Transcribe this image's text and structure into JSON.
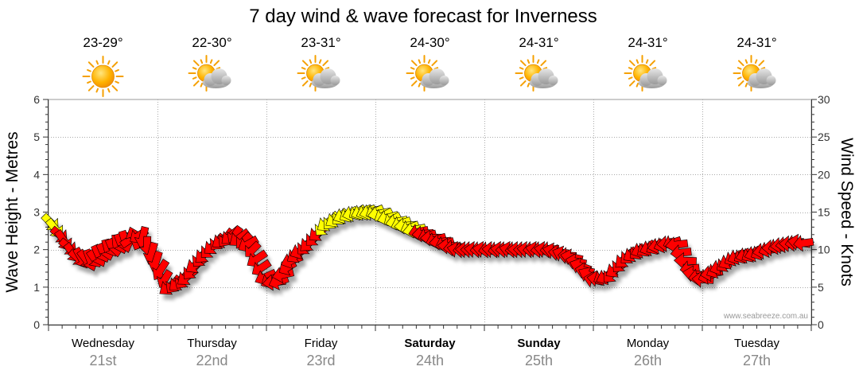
{
  "chart_data": {
    "type": "line",
    "title": "7 day wind & wave forecast for Inverness",
    "y_left_label": "Wave Height - Metres",
    "y_right_label": "Wind Speed - Knots",
    "y_left_range": [
      0,
      6
    ],
    "y_left_ticks": [
      "0",
      "1",
      "2",
      "3",
      "4",
      "5",
      "6"
    ],
    "y_right_range": [
      0,
      30
    ],
    "y_right_ticks": [
      "0",
      "5",
      "10",
      "15",
      "20",
      "25",
      "30"
    ],
    "grid": true,
    "watermark": "www.seabreeze.com.au",
    "days": [
      {
        "day": "Wednesday",
        "date": "21st",
        "temp": "23-29°",
        "icon": "sun-icon",
        "bold": false
      },
      {
        "day": "Thursday",
        "date": "22nd",
        "temp": "22-30°",
        "icon": "sun-cloud-icon",
        "bold": false
      },
      {
        "day": "Friday",
        "date": "23rd",
        "temp": "23-31°",
        "icon": "sun-cloud-icon",
        "bold": false
      },
      {
        "day": "Saturday",
        "date": "24th",
        "temp": "24-30°",
        "icon": "sun-cloud-icon",
        "bold": true
      },
      {
        "day": "Sunday",
        "date": "25th",
        "temp": "24-31°",
        "icon": "sun-cloud-icon",
        "bold": true
      },
      {
        "day": "Monday",
        "date": "26th",
        "temp": "24-31°",
        "icon": "sun-cloud-icon",
        "bold": false
      },
      {
        "day": "Tuesday",
        "date": "27th",
        "temp": "24-31°",
        "icon": "sun-cloud-icon",
        "bold": false
      }
    ],
    "colors": {
      "strong_wind": "#ff0000",
      "moderate_wind": "#ffff00",
      "arrow_stroke": "#000000"
    },
    "wind_series": {
      "name": "Wind Speed",
      "x_days": [
        0.0,
        0.1,
        0.25,
        0.4,
        0.55,
        0.7,
        0.85,
        1.0,
        1.1,
        1.25,
        1.4,
        1.55,
        1.7,
        1.85,
        2.0,
        2.1,
        2.25,
        2.4,
        2.55,
        2.7,
        2.85,
        3.0,
        3.15,
        3.3,
        3.45,
        3.6,
        3.75,
        3.9,
        4.05,
        4.2,
        4.4,
        4.6,
        4.8,
        5.0,
        5.15,
        5.3,
        5.45,
        5.6,
        5.75,
        5.9,
        6.0,
        6.15,
        6.3,
        6.5,
        6.7,
        6.9,
        7.0
      ],
      "knots": [
        14,
        12,
        9,
        8.5,
        10,
        11,
        12,
        8,
        5,
        6,
        9,
        11,
        12,
        10.5,
        6,
        5.5,
        9,
        11,
        13.5,
        14.5,
        15,
        15,
        14,
        13,
        12,
        11,
        10,
        10,
        10,
        10,
        10,
        10,
        9,
        6,
        6.5,
        9,
        10,
        10.5,
        11,
        7,
        6,
        7.5,
        9,
        9.5,
        10.5,
        11,
        10.5
      ],
      "direction_deg": [
        315,
        315,
        320,
        330,
        340,
        350,
        0,
        20,
        45,
        45,
        45,
        45,
        45,
        50,
        60,
        80,
        60,
        45,
        45,
        60,
        65,
        70,
        70,
        75,
        80,
        80,
        90,
        90,
        90,
        90,
        90,
        95,
        100,
        110,
        45,
        45,
        60,
        70,
        80,
        90,
        90,
        60,
        60,
        70,
        80,
        90,
        90
      ]
    }
  }
}
